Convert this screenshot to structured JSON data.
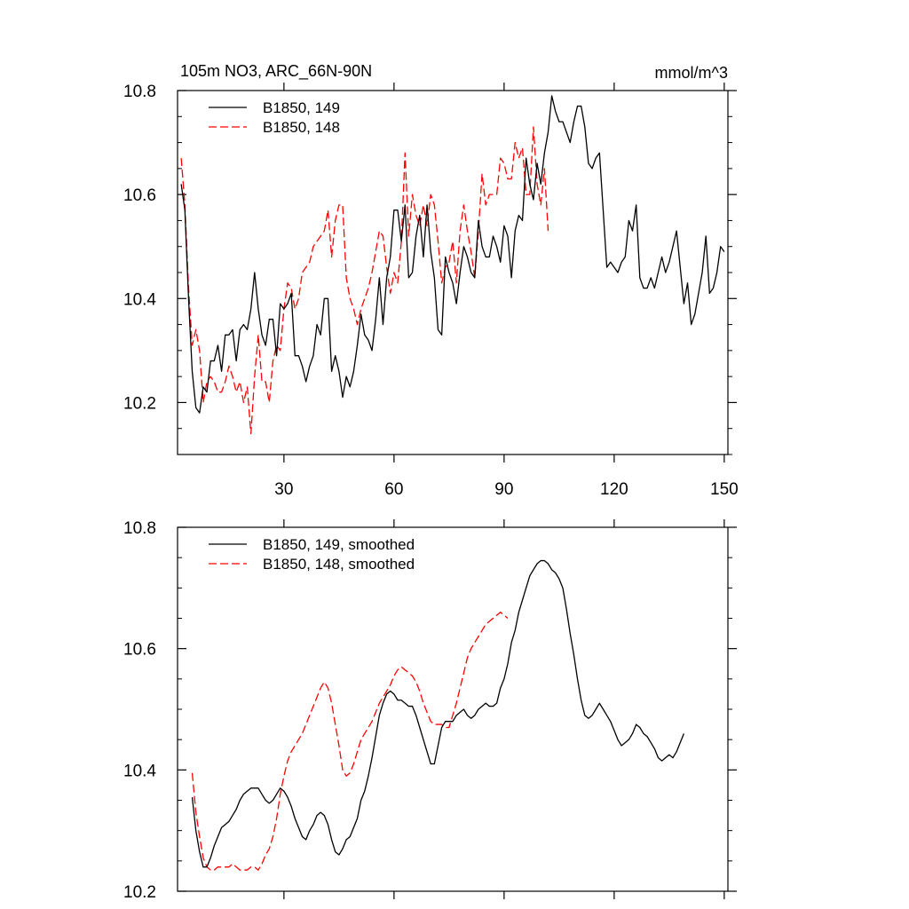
{
  "chart_data": [
    {
      "type": "line",
      "title": "105m NO3, ARC_66N-90N",
      "units": "mmol/m^3",
      "xlim": [
        1,
        151
      ],
      "ylim": [
        10.1,
        10.8
      ],
      "x_ticks": [
        30,
        60,
        90,
        120,
        150
      ],
      "y_ticks": [
        10.2,
        10.4,
        10.6,
        10.8
      ],
      "grid": false,
      "legend_position": "top-left",
      "series": [
        {
          "name": "B1850, 149",
          "color": "#000000",
          "dash": "solid",
          "x_start": 2,
          "values": [
            10.62,
            10.57,
            10.4,
            10.26,
            10.19,
            10.18,
            10.23,
            10.22,
            10.28,
            10.28,
            10.31,
            10.26,
            10.33,
            10.33,
            10.34,
            10.28,
            10.34,
            10.35,
            10.34,
            10.38,
            10.45,
            10.38,
            10.33,
            10.31,
            10.36,
            10.36,
            10.29,
            10.39,
            10.38,
            10.39,
            10.41,
            10.29,
            10.29,
            10.27,
            10.24,
            10.27,
            10.29,
            10.35,
            10.33,
            10.4,
            10.4,
            10.26,
            10.29,
            10.26,
            10.21,
            10.25,
            10.23,
            10.26,
            10.31,
            10.37,
            10.33,
            10.32,
            10.3,
            10.36,
            10.44,
            10.35,
            10.44,
            10.48,
            10.57,
            10.57,
            10.51,
            10.58,
            10.44,
            10.45,
            10.52,
            10.56,
            10.48,
            10.58,
            10.49,
            10.44,
            10.34,
            10.33,
            10.48,
            10.45,
            10.43,
            10.39,
            10.45,
            10.5,
            10.48,
            10.45,
            10.44,
            10.55,
            10.5,
            10.48,
            10.48,
            10.52,
            10.5,
            10.47,
            10.54,
            10.52,
            10.44,
            10.53,
            10.56,
            10.55,
            10.67,
            10.62,
            10.59,
            10.66,
            10.62,
            10.68,
            10.72,
            10.79,
            10.76,
            10.74,
            10.74,
            10.72,
            10.7,
            10.74,
            10.77,
            10.77,
            10.73,
            10.66,
            10.65,
            10.67,
            10.68,
            10.57,
            10.46,
            10.47,
            10.46,
            10.45,
            10.47,
            10.48,
            10.55,
            10.53,
            10.58,
            10.44,
            10.42,
            10.42,
            10.44,
            10.42,
            10.45,
            10.48,
            10.45,
            10.47,
            10.5,
            10.53,
            10.46,
            10.39,
            10.43,
            10.35,
            10.37,
            10.41,
            10.45,
            10.52,
            10.41,
            10.42,
            10.45,
            10.5,
            10.49
          ]
        },
        {
          "name": "B1850, 148",
          "color": "#ff0000",
          "dash": "dashed",
          "x_start": 2,
          "values": [
            10.67,
            10.58,
            10.42,
            10.31,
            10.34,
            10.3,
            10.2,
            10.24,
            10.25,
            10.24,
            10.22,
            10.22,
            10.24,
            10.27,
            10.25,
            10.22,
            10.24,
            10.2,
            10.23,
            10.14,
            10.25,
            10.33,
            10.24,
            10.24,
            10.2,
            10.28,
            10.31,
            10.3,
            10.38,
            10.43,
            10.42,
            10.38,
            10.4,
            10.45,
            10.46,
            10.47,
            10.5,
            10.51,
            10.52,
            10.53,
            10.57,
            10.48,
            10.55,
            10.58,
            10.58,
            10.44,
            10.4,
            10.38,
            10.35,
            10.38,
            10.4,
            10.42,
            10.45,
            10.49,
            10.53,
            10.52,
            10.46,
            10.41,
            10.45,
            10.43,
            10.51,
            10.68,
            10.52,
            10.6,
            10.56,
            10.54,
            10.58,
            10.54,
            10.6,
            10.58,
            10.51,
            10.43,
            10.46,
            10.47,
            10.51,
            10.43,
            10.53,
            10.58,
            10.53,
            10.49,
            10.44,
            10.53,
            10.64,
            10.58,
            10.6,
            10.6,
            10.6,
            10.67,
            10.66,
            10.63,
            10.63,
            10.7,
            10.67,
            10.69,
            10.6,
            10.6,
            10.73,
            10.62,
            10.58,
            10.65,
            10.53
          ]
        }
      ]
    },
    {
      "type": "line",
      "xlim": [
        1,
        151
      ],
      "ylim": [
        10.2,
        10.8
      ],
      "x_ticks": [
        30,
        60,
        90,
        120,
        150
      ],
      "y_ticks": [
        10.2,
        10.4,
        10.6,
        10.8
      ],
      "grid": false,
      "legend_position": "top-left",
      "series": [
        {
          "name": "B1850, 149, smoothed",
          "color": "#000000",
          "dash": "solid",
          "x_start": 5,
          "values": [
            10.355,
            10.3,
            10.265,
            10.24,
            10.24,
            10.255,
            10.275,
            10.29,
            10.305,
            10.31,
            10.315,
            10.325,
            10.335,
            10.35,
            10.36,
            10.365,
            10.37,
            10.37,
            10.37,
            10.36,
            10.35,
            10.345,
            10.35,
            10.36,
            10.37,
            10.365,
            10.355,
            10.34,
            10.32,
            10.305,
            10.29,
            10.285,
            10.3,
            10.31,
            10.325,
            10.33,
            10.325,
            10.31,
            10.285,
            10.265,
            10.26,
            10.27,
            10.285,
            10.29,
            10.305,
            10.32,
            10.35,
            10.365,
            10.39,
            10.42,
            10.455,
            10.49,
            10.51,
            10.525,
            10.53,
            10.525,
            10.515,
            10.515,
            10.51,
            10.505,
            10.505,
            10.49,
            10.47,
            10.45,
            10.43,
            10.41,
            10.41,
            10.44,
            10.47,
            10.48,
            10.48,
            10.48,
            10.49,
            10.495,
            10.5,
            10.49,
            10.485,
            10.49,
            10.5,
            10.505,
            10.51,
            10.505,
            10.505,
            10.51,
            10.535,
            10.55,
            10.575,
            10.61,
            10.63,
            10.66,
            10.68,
            10.7,
            10.72,
            10.73,
            10.74,
            10.745,
            10.745,
            10.74,
            10.73,
            10.725,
            10.715,
            10.7,
            10.665,
            10.625,
            10.59,
            10.55,
            10.515,
            10.49,
            10.485,
            10.49,
            10.5,
            10.51,
            10.5,
            10.49,
            10.48,
            10.465,
            10.45,
            10.44,
            10.445,
            10.45,
            10.46,
            10.475,
            10.47,
            10.46,
            10.455,
            10.445,
            10.435,
            10.42,
            10.415,
            10.42,
            10.425,
            10.42,
            10.43,
            10.445,
            10.46
          ]
        },
        {
          "name": "B1850, 148, smoothed",
          "color": "#ff0000",
          "dash": "dashed",
          "x_start": 5,
          "values": [
            10.395,
            10.33,
            10.29,
            10.255,
            10.24,
            10.235,
            10.235,
            10.24,
            10.24,
            10.24,
            10.24,
            10.245,
            10.24,
            10.235,
            10.235,
            10.235,
            10.24,
            10.24,
            10.235,
            10.245,
            10.26,
            10.27,
            10.29,
            10.32,
            10.36,
            10.39,
            10.415,
            10.43,
            10.44,
            10.45,
            10.46,
            10.475,
            10.49,
            10.505,
            10.52,
            10.535,
            10.545,
            10.535,
            10.51,
            10.475,
            10.44,
            10.4,
            10.39,
            10.395,
            10.41,
            10.43,
            10.45,
            10.46,
            10.47,
            10.48,
            10.495,
            10.51,
            10.52,
            10.53,
            10.54,
            10.555,
            10.565,
            10.57,
            10.565,
            10.56,
            10.555,
            10.545,
            10.53,
            10.51,
            10.495,
            10.48,
            10.475,
            10.475,
            10.475,
            10.47,
            10.47,
            10.49,
            10.51,
            10.535,
            10.56,
            10.585,
            10.6,
            10.61,
            10.62,
            10.63,
            10.64,
            10.645,
            10.65,
            10.655,
            10.66,
            10.655,
            10.65
          ]
        }
      ]
    }
  ]
}
